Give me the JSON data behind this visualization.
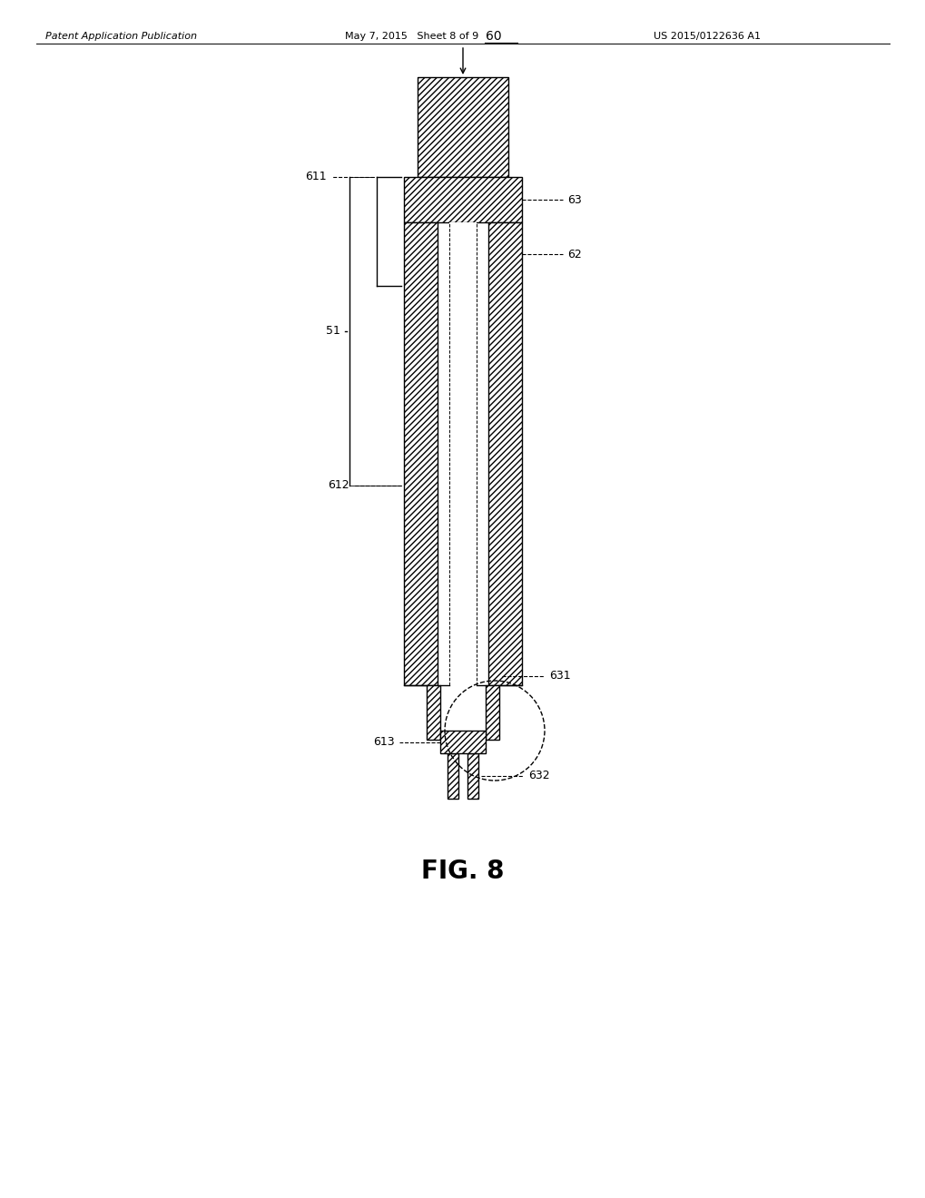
{
  "header_left": "Patent Application Publication",
  "header_mid": "May 7, 2015   Sheet 8 of 9",
  "header_right": "US 2015/0122636 A1",
  "fig_label": "FIG. 8",
  "ref_60": "60",
  "ref_611": "611",
  "ref_612": "612",
  "ref_613": "613",
  "ref_63": "63",
  "ref_62": "62",
  "ref_631": "631",
  "ref_632": "632",
  "ref_51": "51",
  "background": "#ffffff",
  "line_color": "#000000"
}
